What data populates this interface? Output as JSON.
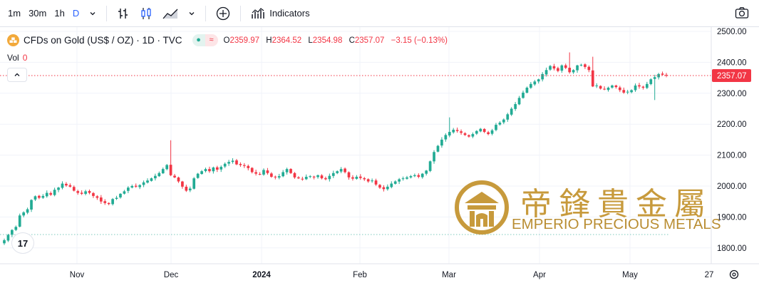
{
  "toolbar": {
    "timeframes": [
      "1m",
      "30m",
      "1h",
      "D"
    ],
    "active_timeframe": "D",
    "indicators_label": "Indicators"
  },
  "legend": {
    "title": "CFDs on Gold (US$ / OZ) · 1D · TVC",
    "open_key": "O",
    "open": "2359.97",
    "high_key": "H",
    "high": "2364.52",
    "low_key": "L",
    "low": "2354.98",
    "close_key": "C",
    "close": "2357.07",
    "change": "−3.15 (−0.13%)"
  },
  "volume": {
    "label": "Vol",
    "value": "0"
  },
  "price_axis": {
    "ticks": [
      "2500.00",
      "2400.00",
      "2300.00",
      "2200.00",
      "2100.00",
      "2000.00",
      "1900.00",
      "1800.00"
    ]
  },
  "time_axis": {
    "ticks": [
      "Nov",
      "Dec",
      "2024",
      "Feb",
      "Mar",
      "Apr",
      "May",
      "27"
    ]
  },
  "last_price_label": "2357.07",
  "watermark": {
    "chinese": "帝鋒貴金屬",
    "english": "EMPERIO PRECIOUS METALS"
  },
  "colors": {
    "up": "#22ab94",
    "down": "#f23645",
    "accent": "#2962ff",
    "gold": "#c79a3c"
  },
  "icons": [
    "bars-icon",
    "candles-icon",
    "area-icon",
    "plus-circle-icon",
    "indicators-icon",
    "camera-icon",
    "settings-icon"
  ],
  "chart_data": {
    "type": "candlestick",
    "ylim": [
      1780,
      2520
    ],
    "last_price": 2357.07,
    "closes": [
      1825,
      1842,
      1858,
      1868,
      1905,
      1915,
      1925,
      1955,
      1967,
      1962,
      1968,
      1978,
      1972,
      1988,
      1995,
      2008,
      2002,
      1998,
      1985,
      1978,
      1975,
      1983,
      1978,
      1968,
      1962,
      1950,
      1945,
      1942,
      1958,
      1962,
      1975,
      1983,
      1995,
      2000,
      1998,
      2003,
      2012,
      2018,
      2025,
      2033,
      2042,
      2055,
      2068,
      2035,
      2028,
      2015,
      1998,
      1985,
      1992,
      2025,
      2040,
      2048,
      2055,
      2048,
      2060,
      2053,
      2062,
      2072,
      2078,
      2082,
      2070,
      2068,
      2065,
      2058,
      2045,
      2040,
      2038,
      2052,
      2042,
      2030,
      2028,
      2032,
      2045,
      2055,
      2042,
      2028,
      2025,
      2022,
      2030,
      2032,
      2028,
      2035,
      2025,
      2022,
      2033,
      2042,
      2048,
      2055,
      2045,
      2028,
      2024,
      2030,
      2026,
      2022,
      2015,
      2018,
      2005,
      1995,
      1990,
      1998,
      2008,
      2015,
      2022,
      2025,
      2028,
      2032,
      2035,
      2030,
      2040,
      2050,
      2080,
      2110,
      2130,
      2150,
      2165,
      2175,
      2182,
      2178,
      2172,
      2165,
      2160,
      2168,
      2178,
      2185,
      2175,
      2168,
      2180,
      2198,
      2205,
      2215,
      2232,
      2250,
      2265,
      2285,
      2302,
      2318,
      2330,
      2338,
      2345,
      2362,
      2375,
      2388,
      2380,
      2372,
      2390,
      2382,
      2368,
      2375,
      2390,
      2392,
      2385,
      2375,
      2322,
      2325,
      2315,
      2312,
      2318,
      2325,
      2320,
      2310,
      2302,
      2305,
      2310,
      2325,
      2322,
      2318,
      2330,
      2345,
      2352,
      2362,
      2360,
      2357.07
    ]
  }
}
